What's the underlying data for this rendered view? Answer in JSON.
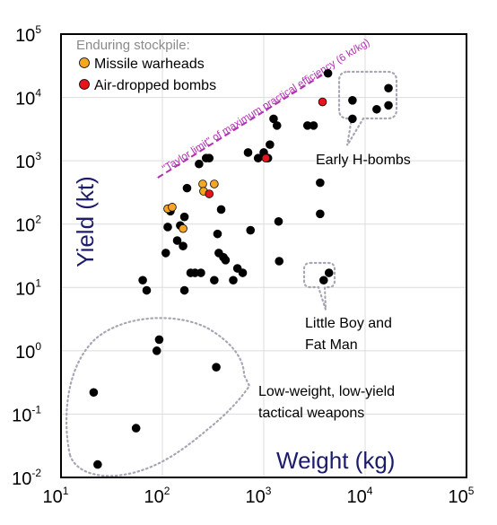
{
  "chart_data": {
    "type": "scatter",
    "xlabel": "Weight (kg)",
    "ylabel": "Yield (kt)",
    "xscale": "log",
    "yscale": "log",
    "xlim": [
      10,
      100000
    ],
    "ylim": [
      0.01,
      100000
    ],
    "grid": true,
    "x_ticks": [
      {
        "base": "10",
        "exp": "1",
        "value": 10
      },
      {
        "base": "10",
        "exp": "2",
        "value": 100
      },
      {
        "base": "10",
        "exp": "3",
        "value": 1000
      },
      {
        "base": "10",
        "exp": "4",
        "value": 10000
      },
      {
        "base": "10",
        "exp": "5",
        "value": 100000
      }
    ],
    "y_ticks": [
      {
        "base": "10",
        "exp": "-2",
        "value": 0.01
      },
      {
        "base": "10",
        "exp": "-1",
        "value": 0.1
      },
      {
        "base": "10",
        "exp": "0",
        "value": 1
      },
      {
        "base": "10",
        "exp": "1",
        "value": 10
      },
      {
        "base": "10",
        "exp": "2",
        "value": 100
      },
      {
        "base": "10",
        "exp": "3",
        "value": 1000
      },
      {
        "base": "10",
        "exp": "4",
        "value": 10000
      },
      {
        "base": "10",
        "exp": "5",
        "value": 100000
      }
    ],
    "legend": {
      "title": "Enduring stockpile:",
      "placement": "top-left",
      "entries": [
        {
          "label": "Missile warheads",
          "color": "#f5a623"
        },
        {
          "label": "Air-dropped bombs",
          "color": "#e8141b"
        }
      ]
    },
    "reference_line": {
      "label": "\"Taylor limit\" of maximum practical efficiency (6 kt/kg)",
      "color": "#b030b0",
      "x": [
        90,
        4000
      ],
      "y": [
        540,
        24000
      ]
    },
    "annotations": {
      "early_h_bombs": "Early H-bombs",
      "little_boy_fat_man_line1": "Little Boy and",
      "little_boy_fat_man_line2": "Fat Man",
      "tactical_line1": "Low-weight, low-yield",
      "tactical_line2": "tactical weapons"
    },
    "series": [
      {
        "color": "#000000",
        "points": [
          [
            21,
            0.22
          ],
          [
            23,
            0.016
          ],
          [
            55,
            0.06
          ],
          [
            88,
            1.0
          ],
          [
            93,
            1.5
          ],
          [
            340,
            0.55
          ],
          [
            64,
            13
          ],
          [
            70,
            9
          ],
          [
            108,
            35
          ],
          [
            113,
            90
          ],
          [
            120,
            160
          ],
          [
            140,
            55
          ],
          [
            150,
            95
          ],
          [
            160,
            45
          ],
          [
            165,
            130
          ],
          [
            165,
            9
          ],
          [
            175,
            370
          ],
          [
            190,
            17
          ],
          [
            210,
            17
          ],
          [
            230,
            890
          ],
          [
            240,
            17
          ],
          [
            270,
            1100
          ],
          [
            290,
            1100
          ],
          [
            325,
            13
          ],
          [
            350,
            70
          ],
          [
            360,
            35
          ],
          [
            380,
            170
          ],
          [
            400,
            30
          ],
          [
            420,
            27
          ],
          [
            500,
            13
          ],
          [
            550,
            20
          ],
          [
            620,
            17
          ],
          [
            700,
            1350
          ],
          [
            740,
            80
          ],
          [
            880,
            1100
          ],
          [
            1000,
            1350
          ],
          [
            1100,
            1100
          ],
          [
            1150,
            1800
          ],
          [
            1250,
            4600
          ],
          [
            1350,
            3600
          ],
          [
            1400,
            110
          ],
          [
            1420,
            26
          ],
          [
            2700,
            3600
          ],
          [
            3100,
            3600
          ],
          [
            3600,
            450
          ],
          [
            3600,
            145
          ],
          [
            3900,
            13
          ],
          [
            4400,
            17
          ],
          [
            4300,
            24000
          ],
          [
            7500,
            9000
          ],
          [
            7500,
            4600
          ],
          [
            13000,
            6500
          ],
          [
            17000,
            14000
          ],
          [
            17000,
            7500
          ]
        ]
      },
      {
        "name": "Missile warheads",
        "color": "#f5a623",
        "points": [
          [
            113,
            175
          ],
          [
            125,
            185
          ],
          [
            160,
            85
          ],
          [
            250,
            430
          ],
          [
            255,
            330
          ],
          [
            325,
            430
          ]
        ]
      },
      {
        "name": "Air-dropped bombs",
        "color": "#e8141b",
        "points": [
          [
            290,
            300
          ],
          [
            1050,
            1100
          ],
          [
            3800,
            8500
          ]
        ]
      }
    ]
  }
}
